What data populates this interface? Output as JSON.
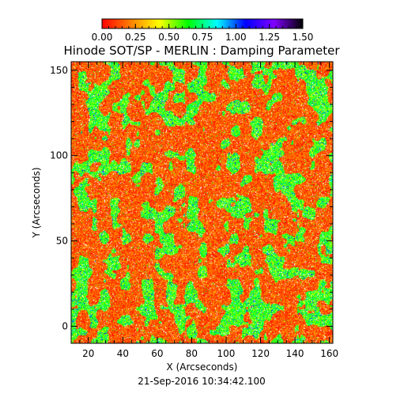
{
  "chart_data": {
    "type": "heatmap",
    "title": "Hinode SOT/SP - MERLIN : Damping Parameter",
    "xlabel": "X (Arcseconds)",
    "ylabel": "Y (Arcseconds)",
    "xlim": [
      10,
      162
    ],
    "ylim": [
      -10,
      155
    ],
    "x_ticks": [
      20,
      40,
      60,
      80,
      100,
      120,
      140,
      160
    ],
    "y_ticks": [
      0,
      50,
      100,
      150
    ],
    "colorbar": {
      "range": [
        0.0,
        1.5
      ],
      "tick_labels": [
        "0.00",
        "0.25",
        "0.50",
        "0.75",
        "1.00",
        "1.25",
        "1.50"
      ],
      "tick_values": [
        0.0,
        0.25,
        0.5,
        0.75,
        1.0,
        1.25,
        1.5
      ],
      "colors": [
        "#ff0000",
        "#ff8000",
        "#ffff00",
        "#00ff00",
        "#00ffff",
        "#0000ff",
        "#8000ff",
        "#000000"
      ],
      "placement": "top"
    },
    "value_distribution": "dominant 0.0-0.25 (red/orange) background with network of 0.5-0.75 (yellow-green) patches and sparse 0.9-1.1 (cyan/blue) pixels",
    "grid": false
  },
  "footer": {
    "timestamp": "21-Sep-2016 10:34:42.100"
  }
}
